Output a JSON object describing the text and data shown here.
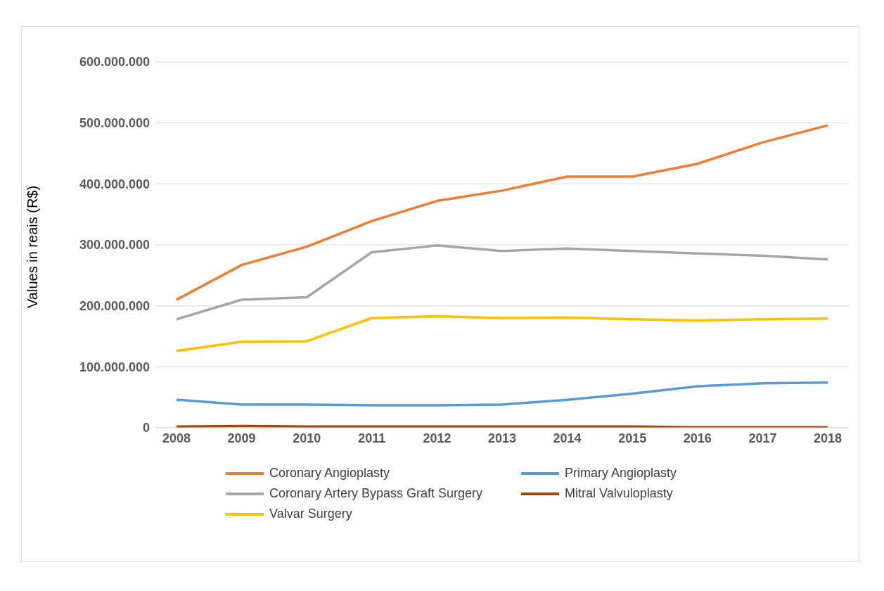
{
  "chart_data": {
    "type": "line",
    "ylabel": "Values in reais (R$)",
    "categories": [
      "2008",
      "2009",
      "2010",
      "2011",
      "2012",
      "2013",
      "2014",
      "2015",
      "2016",
      "2017",
      "2018"
    ],
    "series": [
      {
        "name": "Coronary Angioplasty",
        "color": "#ed7d31",
        "values": [
          210000000,
          267000000,
          297000000,
          339000000,
          372000000,
          389000000,
          412000000,
          412000000,
          433000000,
          468000000,
          496000000
        ]
      },
      {
        "name": "Primary Angioplasty",
        "color": "#5b9bd5",
        "values": [
          46000000,
          38000000,
          38000000,
          37000000,
          37000000,
          38000000,
          46000000,
          56000000,
          68000000,
          73000000,
          74000000
        ]
      },
      {
        "name": "Coronary Artery Bypass Graft Surgery",
        "color": "#a5a5a5",
        "values": [
          178000000,
          210000000,
          214000000,
          288000000,
          299000000,
          290000000,
          294000000,
          290000000,
          286000000,
          282000000,
          276000000
        ]
      },
      {
        "name": "Mitral Valvuloplasty",
        "color": "#9e480e",
        "values": [
          2000000,
          3000000,
          2000000,
          2000000,
          2000000,
          2000000,
          2000000,
          2000000,
          1000000,
          1000000,
          1000000
        ]
      },
      {
        "name": "Valvar Surgery",
        "color": "#ffc000",
        "values": [
          126000000,
          141000000,
          142000000,
          180000000,
          183000000,
          180000000,
          181000000,
          178000000,
          176000000,
          178000000,
          179000000
        ]
      }
    ],
    "ylim": [
      0,
      600000000
    ],
    "yticks": [
      0,
      {
        "value": 100000000,
        "label": "100.000.000"
      },
      {
        "value": 200000000,
        "label": "200.000.000"
      },
      {
        "value": 300000000,
        "label": "300.000.000"
      },
      {
        "value": 400000000,
        "label": "400.000.000"
      },
      {
        "value": 500000000,
        "label": "500.000.000"
      },
      {
        "value": 600000000,
        "label": "600.000.000"
      }
    ],
    "grid": "y",
    "legend": "bottom"
  }
}
